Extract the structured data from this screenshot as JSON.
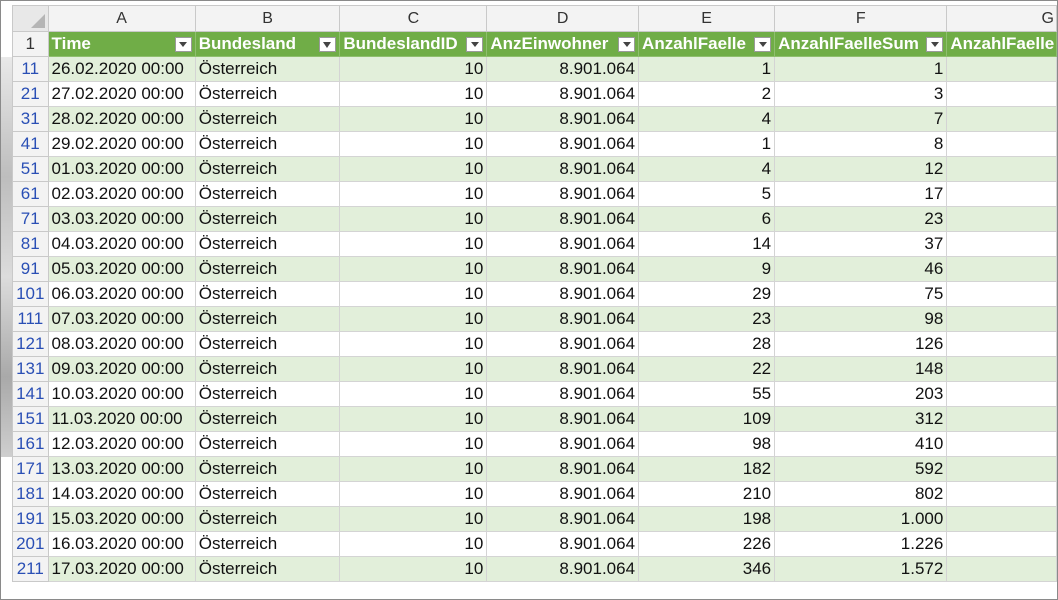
{
  "columns": [
    "A",
    "B",
    "C",
    "D",
    "E",
    "F",
    "G"
  ],
  "header_row_number": "1",
  "headers": [
    "Time",
    "Bundesland",
    "BundeslandID",
    "AnzEinwohner",
    "AnzahlFaelle",
    "AnzahlFaelleSum",
    "AnzahlFaelle"
  ],
  "filtered_column": "Bundesland",
  "rows": [
    {
      "n": "11",
      "time": "26.02.2020 00:00",
      "land": "Österreich",
      "id": "10",
      "einw": "8.901.064",
      "faelle": "1",
      "sum": "1"
    },
    {
      "n": "21",
      "time": "27.02.2020 00:00",
      "land": "Österreich",
      "id": "10",
      "einw": "8.901.064",
      "faelle": "2",
      "sum": "3"
    },
    {
      "n": "31",
      "time": "28.02.2020 00:00",
      "land": "Österreich",
      "id": "10",
      "einw": "8.901.064",
      "faelle": "4",
      "sum": "7"
    },
    {
      "n": "41",
      "time": "29.02.2020 00:00",
      "land": "Österreich",
      "id": "10",
      "einw": "8.901.064",
      "faelle": "1",
      "sum": "8"
    },
    {
      "n": "51",
      "time": "01.03.2020 00:00",
      "land": "Österreich",
      "id": "10",
      "einw": "8.901.064",
      "faelle": "4",
      "sum": "12"
    },
    {
      "n": "61",
      "time": "02.03.2020 00:00",
      "land": "Österreich",
      "id": "10",
      "einw": "8.901.064",
      "faelle": "5",
      "sum": "17"
    },
    {
      "n": "71",
      "time": "03.03.2020 00:00",
      "land": "Österreich",
      "id": "10",
      "einw": "8.901.064",
      "faelle": "6",
      "sum": "23"
    },
    {
      "n": "81",
      "time": "04.03.2020 00:00",
      "land": "Österreich",
      "id": "10",
      "einw": "8.901.064",
      "faelle": "14",
      "sum": "37"
    },
    {
      "n": "91",
      "time": "05.03.2020 00:00",
      "land": "Österreich",
      "id": "10",
      "einw": "8.901.064",
      "faelle": "9",
      "sum": "46"
    },
    {
      "n": "101",
      "time": "06.03.2020 00:00",
      "land": "Österreich",
      "id": "10",
      "einw": "8.901.064",
      "faelle": "29",
      "sum": "75"
    },
    {
      "n": "111",
      "time": "07.03.2020 00:00",
      "land": "Österreich",
      "id": "10",
      "einw": "8.901.064",
      "faelle": "23",
      "sum": "98"
    },
    {
      "n": "121",
      "time": "08.03.2020 00:00",
      "land": "Österreich",
      "id": "10",
      "einw": "8.901.064",
      "faelle": "28",
      "sum": "126"
    },
    {
      "n": "131",
      "time": "09.03.2020 00:00",
      "land": "Österreich",
      "id": "10",
      "einw": "8.901.064",
      "faelle": "22",
      "sum": "148"
    },
    {
      "n": "141",
      "time": "10.03.2020 00:00",
      "land": "Österreich",
      "id": "10",
      "einw": "8.901.064",
      "faelle": "55",
      "sum": "203"
    },
    {
      "n": "151",
      "time": "11.03.2020 00:00",
      "land": "Österreich",
      "id": "10",
      "einw": "8.901.064",
      "faelle": "109",
      "sum": "312"
    },
    {
      "n": "161",
      "time": "12.03.2020 00:00",
      "land": "Österreich",
      "id": "10",
      "einw": "8.901.064",
      "faelle": "98",
      "sum": "410"
    },
    {
      "n": "171",
      "time": "13.03.2020 00:00",
      "land": "Österreich",
      "id": "10",
      "einw": "8.901.064",
      "faelle": "182",
      "sum": "592"
    },
    {
      "n": "181",
      "time": "14.03.2020 00:00",
      "land": "Österreich",
      "id": "10",
      "einw": "8.901.064",
      "faelle": "210",
      "sum": "802"
    },
    {
      "n": "191",
      "time": "15.03.2020 00:00",
      "land": "Österreich",
      "id": "10",
      "einw": "8.901.064",
      "faelle": "198",
      "sum": "1.000"
    },
    {
      "n": "201",
      "time": "16.03.2020 00:00",
      "land": "Österreich",
      "id": "10",
      "einw": "8.901.064",
      "faelle": "226",
      "sum": "1.226"
    },
    {
      "n": "211",
      "time": "17.03.2020 00:00",
      "land": "Österreich",
      "id": "10",
      "einw": "8.901.064",
      "faelle": "346",
      "sum": "1.572"
    }
  ],
  "colors": {
    "header_green": "#70ad47",
    "band_green": "#e2efda",
    "row_number_blue": "#2a4fb5"
  }
}
